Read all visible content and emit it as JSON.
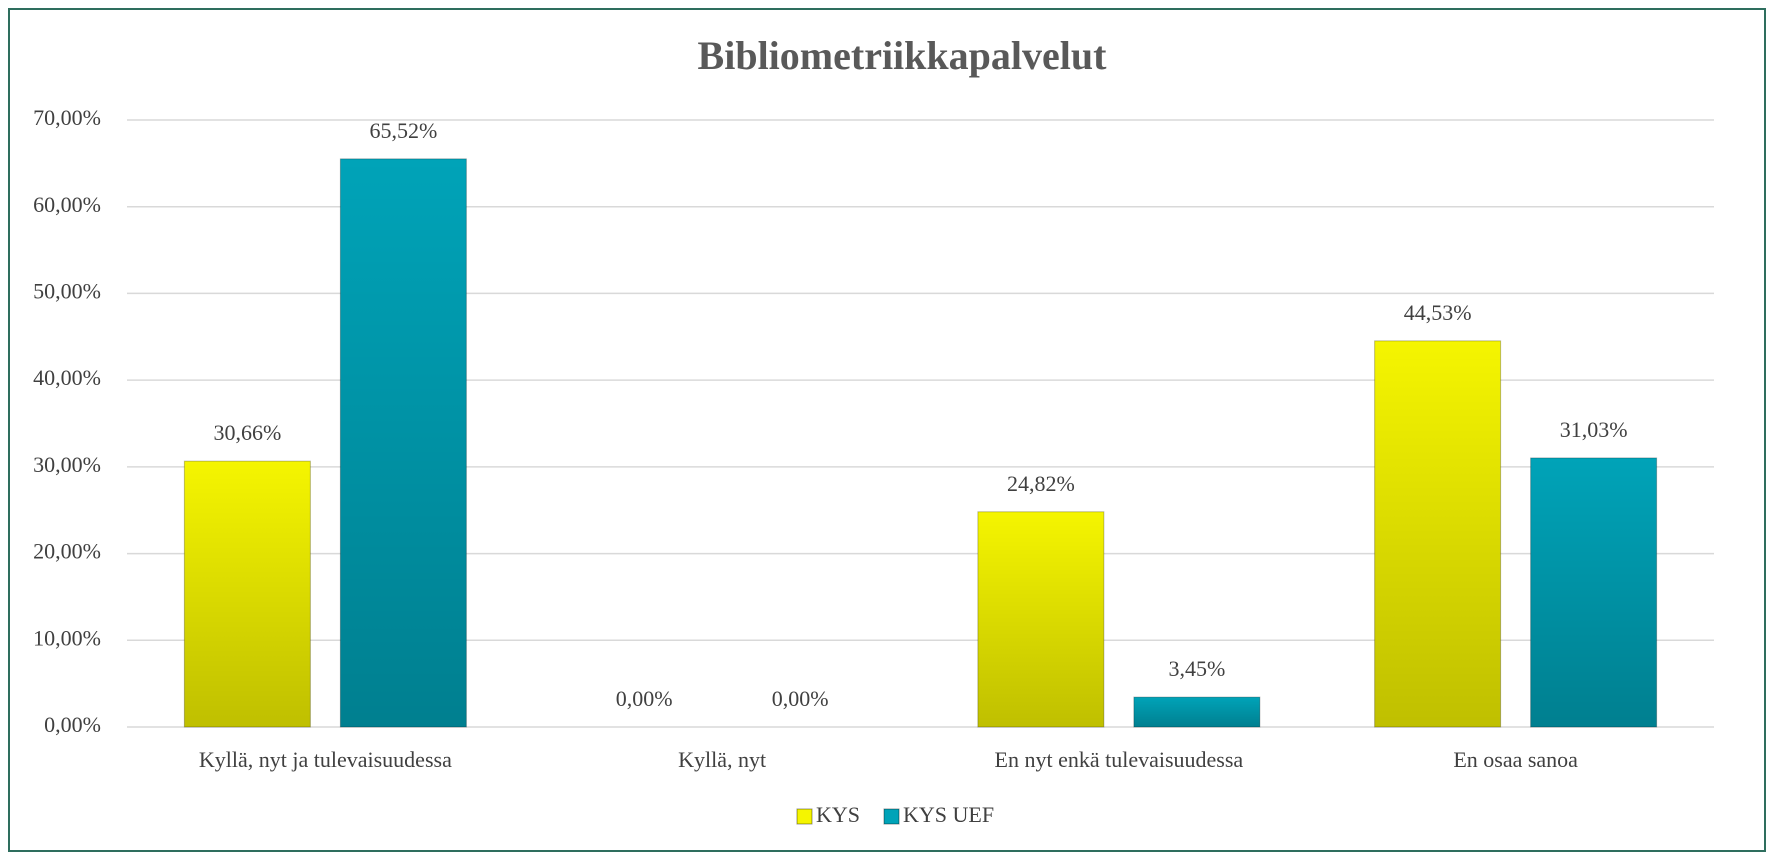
{
  "chart_data": {
    "type": "bar",
    "title": "Bibliometriikkapalvelut",
    "categories": [
      "Kyllä, nyt ja tulevaisuudessa",
      "Kyllä, nyt",
      "En nyt enkä tulevaisuudessa",
      "En osaa sanoa"
    ],
    "series": [
      {
        "name": "KYS",
        "color": "#f5f500",
        "values": [
          30.66,
          0,
          24.82,
          44.53
        ],
        "value_labels": [
          "30,66%",
          "0,00%",
          "24,82%",
          "44,53%"
        ]
      },
      {
        "name": "KYS UEF",
        "color": "#00a3b8",
        "values": [
          65.52,
          0,
          3.45,
          31.03
        ],
        "value_labels": [
          "65,52%",
          "0,00%",
          "3,45%",
          "31,03%"
        ]
      }
    ],
    "ylim": [
      0,
      70
    ],
    "yticks": [
      {
        "value": 0,
        "label": "0,00%"
      },
      {
        "value": 10,
        "label": "10,00%"
      },
      {
        "value": 20,
        "label": "20,00%"
      },
      {
        "value": 30,
        "label": "30,00%"
      },
      {
        "value": 40,
        "label": "40,00%"
      },
      {
        "value": 50,
        "label": "50,00%"
      },
      {
        "value": 60,
        "label": "60,00%"
      },
      {
        "value": 70,
        "label": "70,00%"
      }
    ],
    "grid": true,
    "legend": "bottom"
  }
}
